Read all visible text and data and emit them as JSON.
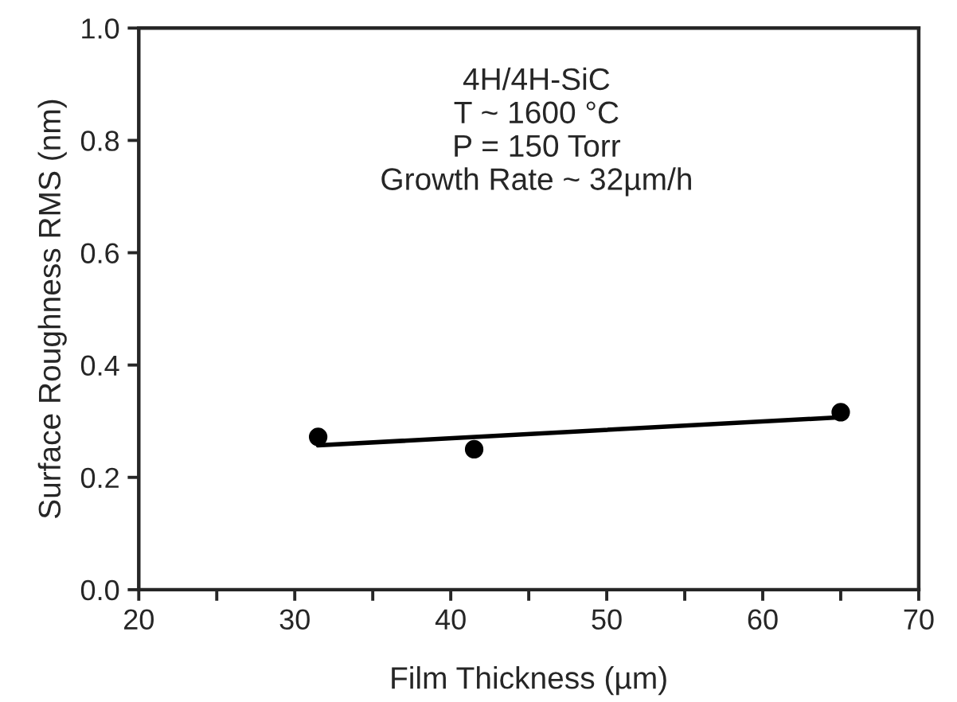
{
  "chart_data": {
    "type": "scatter",
    "xlabel": "Film Thickness (µm)",
    "ylabel": "Surface Roughness RMS (nm)",
    "annotations": [
      "4H/4H-SiC\nT ~ 1600 °C\nP = 150 Torr\nGrowth Rate ~ 32µm/h"
    ],
    "series": [
      {
        "color": "#000000",
        "marker": "circle",
        "x": [
          31.5,
          41.5,
          65.0
        ],
        "values": [
          0.272,
          0.25,
          0.316
        ]
      },
      {
        "type": "line",
        "color": "#000000",
        "marker": "none",
        "line_style": "solid",
        "x": [
          31.5,
          65.0
        ],
        "values": [
          0.257,
          0.307
        ]
      }
    ],
    "xlim": [
      20,
      70
    ],
    "ylim": [
      0,
      1
    ],
    "xticks": [
      20,
      {
        "value": 25,
        "label": null
      },
      30,
      {
        "value": 35,
        "label": null
      },
      40,
      {
        "value": 45,
        "label": null
      },
      50,
      {
        "value": 55,
        "label": null
      },
      60,
      {
        "value": 65,
        "label": null
      },
      70
    ],
    "yticks": [
      {
        "value": 0,
        "label": "0.0"
      },
      0.2,
      0.4,
      0.6,
      0.8,
      {
        "value": 1,
        "label": "1.0"
      }
    ],
    "grid": false,
    "legend": false
  }
}
